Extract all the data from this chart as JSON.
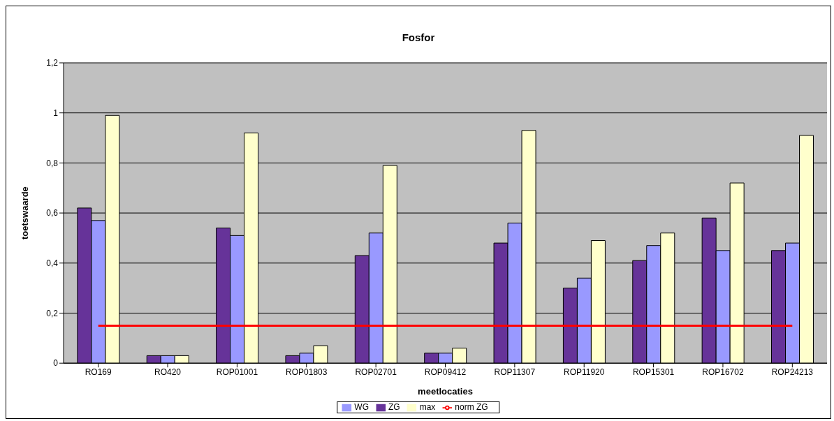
{
  "chart_data": {
    "type": "bar",
    "title": "Fosfor",
    "xlabel": "meetlocaties",
    "ylabel": "toetswaarde",
    "categories": [
      "RO169",
      "RO420",
      "ROP01001",
      "ROP01803",
      "ROP02701",
      "ROP09412",
      "ROP11307",
      "ROP11920",
      "ROP15301",
      "ROP16702",
      "ROP24213"
    ],
    "series": [
      {
        "name": "ZG",
        "color": "#663399",
        "values": [
          0.62,
          0.03,
          0.54,
          0.03,
          0.43,
          0.04,
          0.48,
          0.3,
          0.41,
          0.58,
          0.45
        ]
      },
      {
        "name": "WG",
        "color": "#9999ff",
        "values": [
          0.57,
          0.03,
          0.51,
          0.04,
          0.52,
          0.04,
          0.56,
          0.34,
          0.47,
          0.45,
          0.48
        ]
      },
      {
        "name": "max",
        "color": "#ffffcc",
        "values": [
          0.99,
          0.03,
          0.92,
          0.07,
          0.79,
          0.06,
          0.93,
          0.49,
          0.52,
          0.72,
          0.91
        ]
      },
      {
        "name": "norm ZG",
        "type": "line",
        "color": "#ff0000",
        "values": [
          0.15,
          0.15,
          0.15,
          0.15,
          0.15,
          0.15,
          0.15,
          0.15,
          0.15,
          0.15,
          0.15
        ]
      }
    ],
    "ylim": [
      0,
      1.2
    ],
    "yticks": [
      0,
      {
        "value": 0.2,
        "label": "0,2"
      },
      {
        "value": 0.4,
        "label": "0,4"
      },
      {
        "value": 0.6,
        "label": "0,6"
      },
      {
        "value": 0.8,
        "label": "0,8"
      },
      1,
      {
        "value": 1.2,
        "label": "1,2"
      }
    ],
    "grid": "y",
    "legend": "bottom",
    "marker": "none"
  }
}
